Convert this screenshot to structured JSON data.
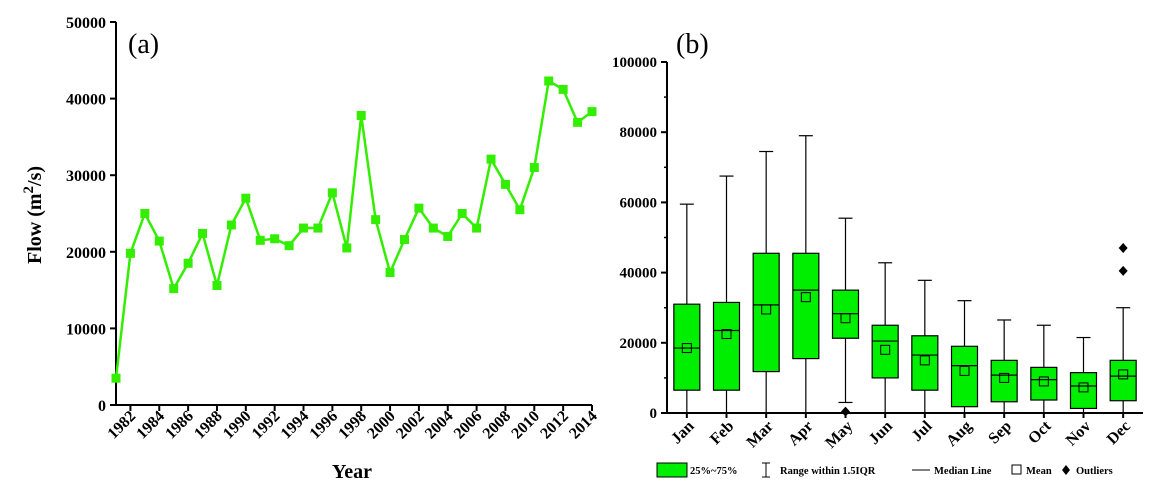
{
  "chart_data": [
    {
      "type": "line",
      "panel_label": "(a)",
      "xlabel": "Year",
      "ylabel": "Flow (m",
      "ylabel_sup": "2",
      "ylabel_end": "/s)",
      "ylim": [
        0,
        50000
      ],
      "yticks": [
        "0",
        "10000",
        "20000",
        "30000",
        "40000",
        "50000"
      ],
      "xlim": [
        1981,
        2014
      ],
      "xticks": [
        "1982",
        "1984",
        "1986",
        "1988",
        "1990",
        "1992",
        "1994",
        "1996",
        "1998",
        "2000",
        "2002",
        "2004",
        "2006",
        "2008",
        "2010",
        "2012",
        "2014"
      ],
      "line_color": "#33ee00",
      "x": [
        1981,
        1982,
        1983,
        1984,
        1985,
        1986,
        1987,
        1988,
        1989,
        1990,
        1991,
        1992,
        1993,
        1994,
        1995,
        1996,
        1997,
        1998,
        1999,
        2000,
        2001,
        2002,
        2003,
        2004,
        2005,
        2006,
        2007,
        2008,
        2009,
        2010,
        2011,
        2012,
        2013,
        2014
      ],
      "y": [
        3500,
        19800,
        25000,
        21400,
        15200,
        18500,
        22400,
        15600,
        23500,
        27000,
        21500,
        21700,
        20800,
        23100,
        23100,
        27700,
        20500,
        37800,
        24200,
        17300,
        21600,
        25700,
        23100,
        22000,
        25000,
        23100,
        32100,
        28800,
        25500,
        31000,
        42300,
        41200,
        36900,
        38300
      ]
    },
    {
      "type": "box",
      "panel_label": "(b)",
      "ylim": [
        0,
        100000
      ],
      "yticks": [
        "0",
        "20000",
        "40000",
        "60000",
        "80000",
        "100000"
      ],
      "box_color": "#00ee00",
      "categories": [
        "Jan",
        "Feb",
        "Mar",
        "Apr",
        "May",
        "Jun",
        "Jul",
        "Aug",
        "Sep",
        "Oct",
        "Nov",
        "Dec"
      ],
      "whisker_low": [
        0,
        0,
        0,
        0,
        3000,
        0,
        0,
        0,
        0,
        0,
        0,
        0
      ],
      "q1": [
        6500,
        6500,
        11800,
        15500,
        21300,
        10000,
        6500,
        1800,
        3200,
        3700,
        1300,
        3500
      ],
      "median": [
        18500,
        23500,
        30800,
        35000,
        28300,
        20500,
        16500,
        13500,
        10800,
        9500,
        7700,
        10500
      ],
      "mean": [
        18500,
        22500,
        29500,
        33000,
        27000,
        18000,
        15000,
        12000,
        10000,
        9000,
        7300,
        11000
      ],
      "q3": [
        31000,
        31500,
        45500,
        45500,
        35000,
        25000,
        22000,
        19000,
        15000,
        13000,
        11500,
        15000
      ],
      "whisker_high": [
        59500,
        67500,
        74500,
        79000,
        55500,
        42800,
        37800,
        32000,
        26500,
        25000,
        21500,
        30000
      ],
      "outliers": [
        [],
        [],
        [],
        [],
        [
          400
        ],
        [],
        [],
        [],
        [],
        [],
        [],
        [
          40500,
          47000
        ]
      ],
      "legend": {
        "box": "25%~75%",
        "range": "Range within 1.5IQR",
        "median": "Median Line",
        "mean": "Mean",
        "outliers": "Outliers"
      }
    }
  ]
}
